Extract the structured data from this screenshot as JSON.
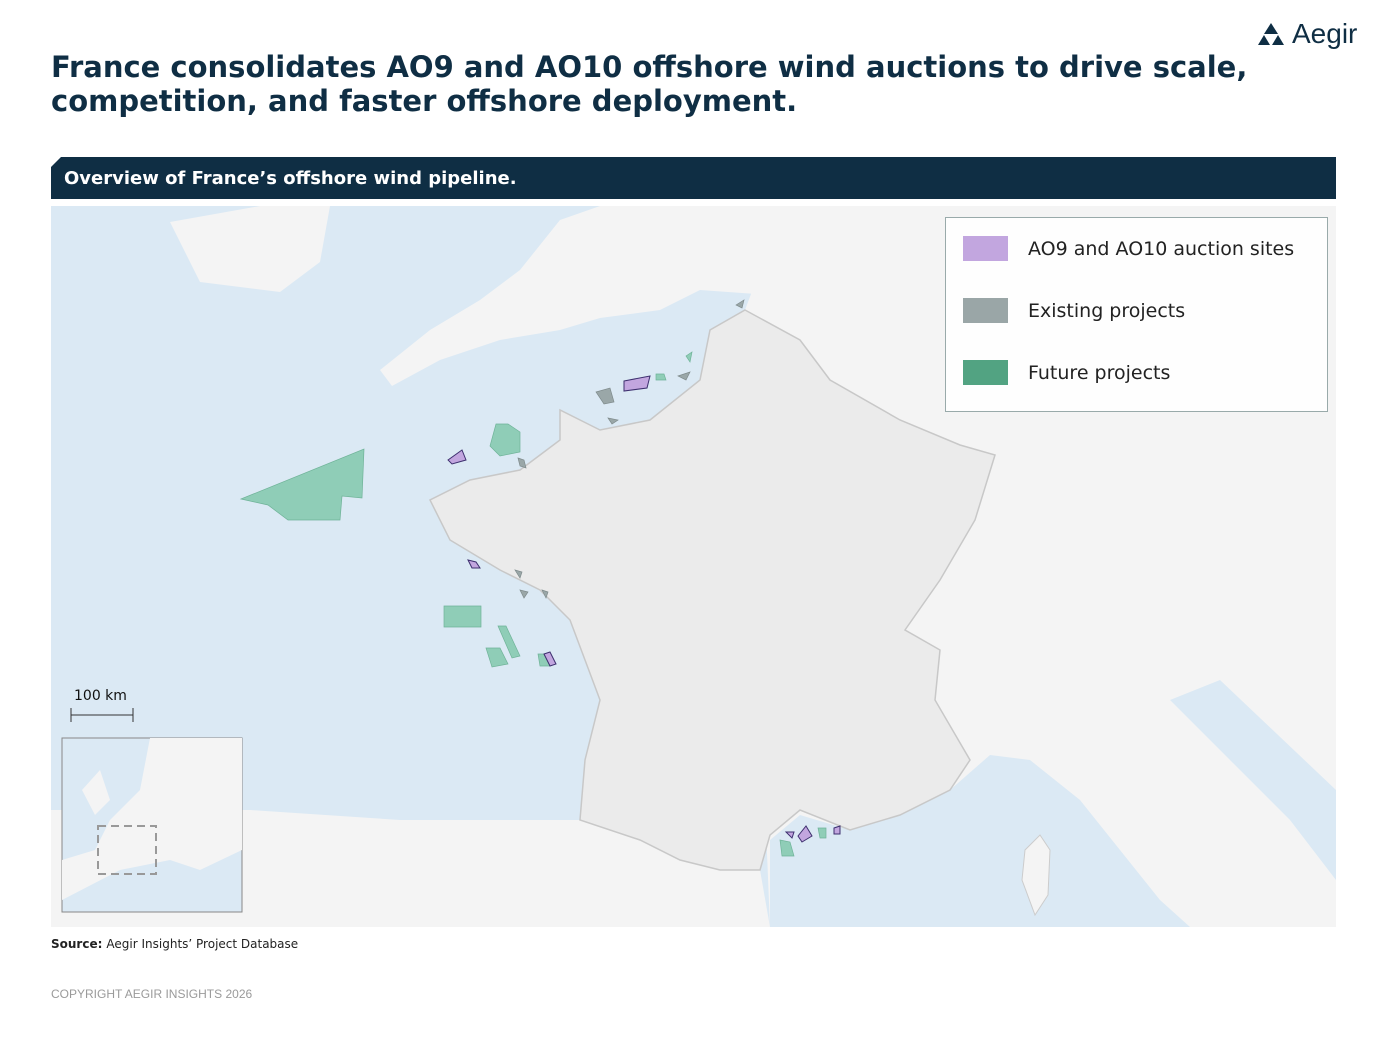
{
  "header": {
    "logo": "Aegir",
    "title_lines": [
      "France consolidates AO9 and AO10 offshore wind auctions to drive scale,",
      "competition, and faster offshore deployment."
    ]
  },
  "panel": {
    "title": "Overview of France’s offshore wind pipeline."
  },
  "legend": {
    "items": [
      "AO9 and AO10 auction sites",
      "Existing projects",
      "Future projects"
    ]
  },
  "map": {
    "scale_label": "100 km"
  },
  "footer": {
    "source_label": "Source:",
    "source": "Aegir Insights’ Project Database",
    "copyright": "COPYRIGHT AEGIR INSIGHTS 2026"
  }
}
